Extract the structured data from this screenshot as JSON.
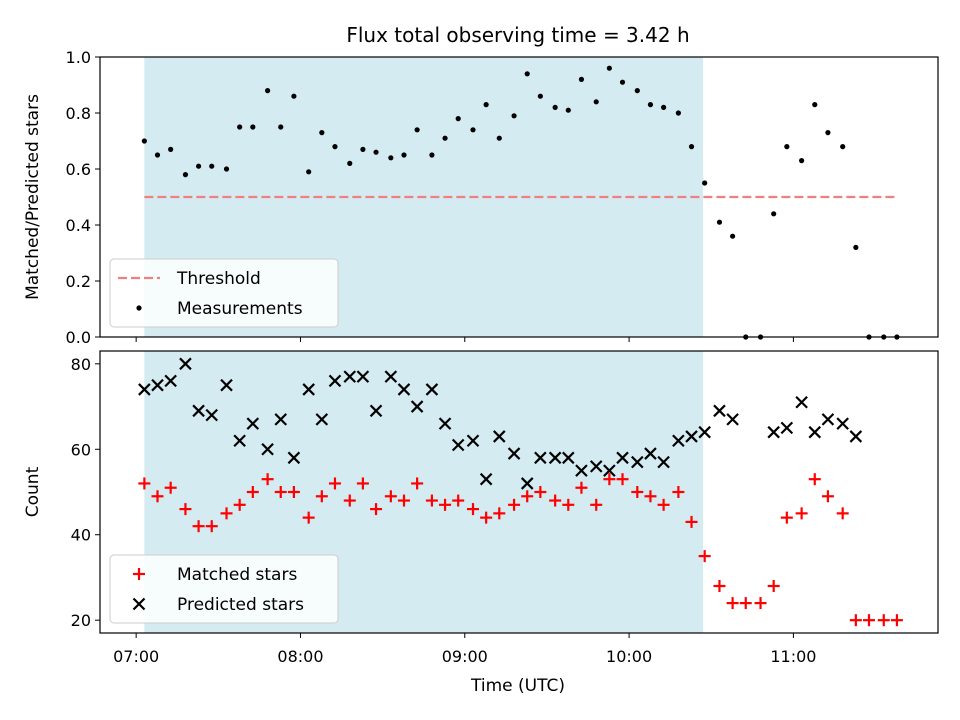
{
  "chart_data": {
    "title": "Flux total observing time = 3.42 h",
    "xlabel": "Time (UTC)",
    "x_ticks": [
      "07:00",
      "08:00",
      "09:00",
      "10:00",
      "11:00"
    ],
    "x_range_hours": [
      6.78,
      11.88
    ],
    "observing_window_hours": [
      7.05,
      10.45
    ],
    "shade_color": "#d4ebf1",
    "panels": [
      {
        "type": "scatter",
        "ylabel": "Matched/Predicted stars",
        "ylim": [
          0,
          1.0
        ],
        "yticks": [
          0.0,
          0.2,
          0.4,
          0.6,
          0.8,
          1.0
        ],
        "threshold": {
          "name": "Threshold",
          "value": 0.5,
          "x_range": [
            7.05,
            11.62
          ],
          "color": "#f08080"
        },
        "series": [
          {
            "name": "Measurements",
            "marker": "dot",
            "color": "#000000",
            "points": [
              [
                7.05,
                0.7
              ],
              [
                7.13,
                0.65
              ],
              [
                7.21,
                0.67
              ],
              [
                7.3,
                0.58
              ],
              [
                7.38,
                0.61
              ],
              [
                7.46,
                0.61
              ],
              [
                7.55,
                0.6
              ],
              [
                7.63,
                0.75
              ],
              [
                7.71,
                0.75
              ],
              [
                7.8,
                0.88
              ],
              [
                7.88,
                0.75
              ],
              [
                7.96,
                0.86
              ],
              [
                8.05,
                0.59
              ],
              [
                8.13,
                0.73
              ],
              [
                8.21,
                0.68
              ],
              [
                8.3,
                0.62
              ],
              [
                8.38,
                0.67
              ],
              [
                8.46,
                0.66
              ],
              [
                8.55,
                0.64
              ],
              [
                8.63,
                0.65
              ],
              [
                8.71,
                0.74
              ],
              [
                8.8,
                0.65
              ],
              [
                8.88,
                0.71
              ],
              [
                8.96,
                0.78
              ],
              [
                9.05,
                0.74
              ],
              [
                9.13,
                0.83
              ],
              [
                9.21,
                0.71
              ],
              [
                9.3,
                0.79
              ],
              [
                9.38,
                0.94
              ],
              [
                9.46,
                0.86
              ],
              [
                9.55,
                0.82
              ],
              [
                9.63,
                0.81
              ],
              [
                9.71,
                0.92
              ],
              [
                9.8,
                0.84
              ],
              [
                9.88,
                0.96
              ],
              [
                9.96,
                0.91
              ],
              [
                10.05,
                0.88
              ],
              [
                10.13,
                0.83
              ],
              [
                10.21,
                0.82
              ],
              [
                10.3,
                0.8
              ],
              [
                10.38,
                0.68
              ],
              [
                10.46,
                0.55
              ],
              [
                10.55,
                0.41
              ],
              [
                10.63,
                0.36
              ],
              [
                10.71,
                0.0
              ],
              [
                10.8,
                0.0
              ],
              [
                10.88,
                0.44
              ],
              [
                10.96,
                0.68
              ],
              [
                11.05,
                0.63
              ],
              [
                11.13,
                0.83
              ],
              [
                11.21,
                0.73
              ],
              [
                11.3,
                0.68
              ],
              [
                11.38,
                0.32
              ],
              [
                11.46,
                0.0
              ],
              [
                11.55,
                0.0
              ],
              [
                11.63,
                0.0
              ]
            ]
          }
        ],
        "legend": {
          "position": "lower-left",
          "entries": [
            "Threshold",
            "Measurements"
          ]
        }
      },
      {
        "type": "scatter",
        "ylabel": "Count",
        "ylim": [
          17,
          83
        ],
        "yticks": [
          20,
          40,
          60,
          80
        ],
        "series": [
          {
            "name": "Matched stars",
            "marker": "plus",
            "color": "#ff0000",
            "points": [
              [
                7.05,
                52
              ],
              [
                7.13,
                49
              ],
              [
                7.21,
                51
              ],
              [
                7.3,
                46
              ],
              [
                7.38,
                42
              ],
              [
                7.46,
                42
              ],
              [
                7.55,
                45
              ],
              [
                7.63,
                47
              ],
              [
                7.71,
                50
              ],
              [
                7.8,
                53
              ],
              [
                7.88,
                50
              ],
              [
                7.96,
                50
              ],
              [
                8.05,
                44
              ],
              [
                8.13,
                49
              ],
              [
                8.21,
                52
              ],
              [
                8.3,
                48
              ],
              [
                8.38,
                52
              ],
              [
                8.46,
                46
              ],
              [
                8.55,
                49
              ],
              [
                8.63,
                48
              ],
              [
                8.71,
                52
              ],
              [
                8.8,
                48
              ],
              [
                8.88,
                47
              ],
              [
                8.96,
                48
              ],
              [
                9.05,
                46
              ],
              [
                9.13,
                44
              ],
              [
                9.21,
                45
              ],
              [
                9.3,
                47
              ],
              [
                9.38,
                49
              ],
              [
                9.46,
                50
              ],
              [
                9.55,
                48
              ],
              [
                9.63,
                47
              ],
              [
                9.71,
                51
              ],
              [
                9.8,
                47
              ],
              [
                9.88,
                53
              ],
              [
                9.96,
                53
              ],
              [
                10.05,
                50
              ],
              [
                10.13,
                49
              ],
              [
                10.21,
                47
              ],
              [
                10.3,
                50
              ],
              [
                10.38,
                43
              ],
              [
                10.46,
                35
              ],
              [
                10.55,
                28
              ],
              [
                10.63,
                24
              ],
              [
                10.71,
                24
              ],
              [
                10.8,
                24
              ],
              [
                10.88,
                28
              ],
              [
                10.96,
                44
              ],
              [
                11.05,
                45
              ],
              [
                11.13,
                53
              ],
              [
                11.21,
                49
              ],
              [
                11.3,
                45
              ],
              [
                11.38,
                20
              ],
              [
                11.46,
                20
              ],
              [
                11.55,
                20
              ],
              [
                11.63,
                20
              ]
            ]
          },
          {
            "name": "Predicted stars",
            "marker": "x",
            "color": "#000000",
            "points": [
              [
                7.05,
                74
              ],
              [
                7.13,
                75
              ],
              [
                7.21,
                76
              ],
              [
                7.3,
                80
              ],
              [
                7.38,
                69
              ],
              [
                7.46,
                68
              ],
              [
                7.55,
                75
              ],
              [
                7.63,
                62
              ],
              [
                7.71,
                66
              ],
              [
                7.8,
                60
              ],
              [
                7.88,
                67
              ],
              [
                7.96,
                58
              ],
              [
                8.05,
                74
              ],
              [
                8.13,
                67
              ],
              [
                8.21,
                76
              ],
              [
                8.3,
                77
              ],
              [
                8.38,
                77
              ],
              [
                8.46,
                69
              ],
              [
                8.55,
                77
              ],
              [
                8.63,
                74
              ],
              [
                8.71,
                70
              ],
              [
                8.8,
                74
              ],
              [
                8.88,
                66
              ],
              [
                8.96,
                61
              ],
              [
                9.05,
                62
              ],
              [
                9.13,
                53
              ],
              [
                9.21,
                63
              ],
              [
                9.3,
                59
              ],
              [
                9.38,
                52
              ],
              [
                9.46,
                58
              ],
              [
                9.55,
                58
              ],
              [
                9.63,
                58
              ],
              [
                9.71,
                55
              ],
              [
                9.8,
                56
              ],
              [
                9.88,
                55
              ],
              [
                9.96,
                58
              ],
              [
                10.05,
                57
              ],
              [
                10.13,
                59
              ],
              [
                10.21,
                57
              ],
              [
                10.3,
                62
              ],
              [
                10.38,
                63
              ],
              [
                10.46,
                64
              ],
              [
                10.55,
                69
              ],
              [
                10.63,
                67
              ],
              [
                10.88,
                64
              ],
              [
                10.96,
                65
              ],
              [
                11.05,
                71
              ],
              [
                11.13,
                64
              ],
              [
                11.21,
                67
              ],
              [
                11.3,
                66
              ],
              [
                11.38,
                63
              ]
            ]
          }
        ],
        "legend": {
          "position": "lower-left",
          "entries": [
            "Matched stars",
            "Predicted stars"
          ]
        }
      }
    ]
  }
}
